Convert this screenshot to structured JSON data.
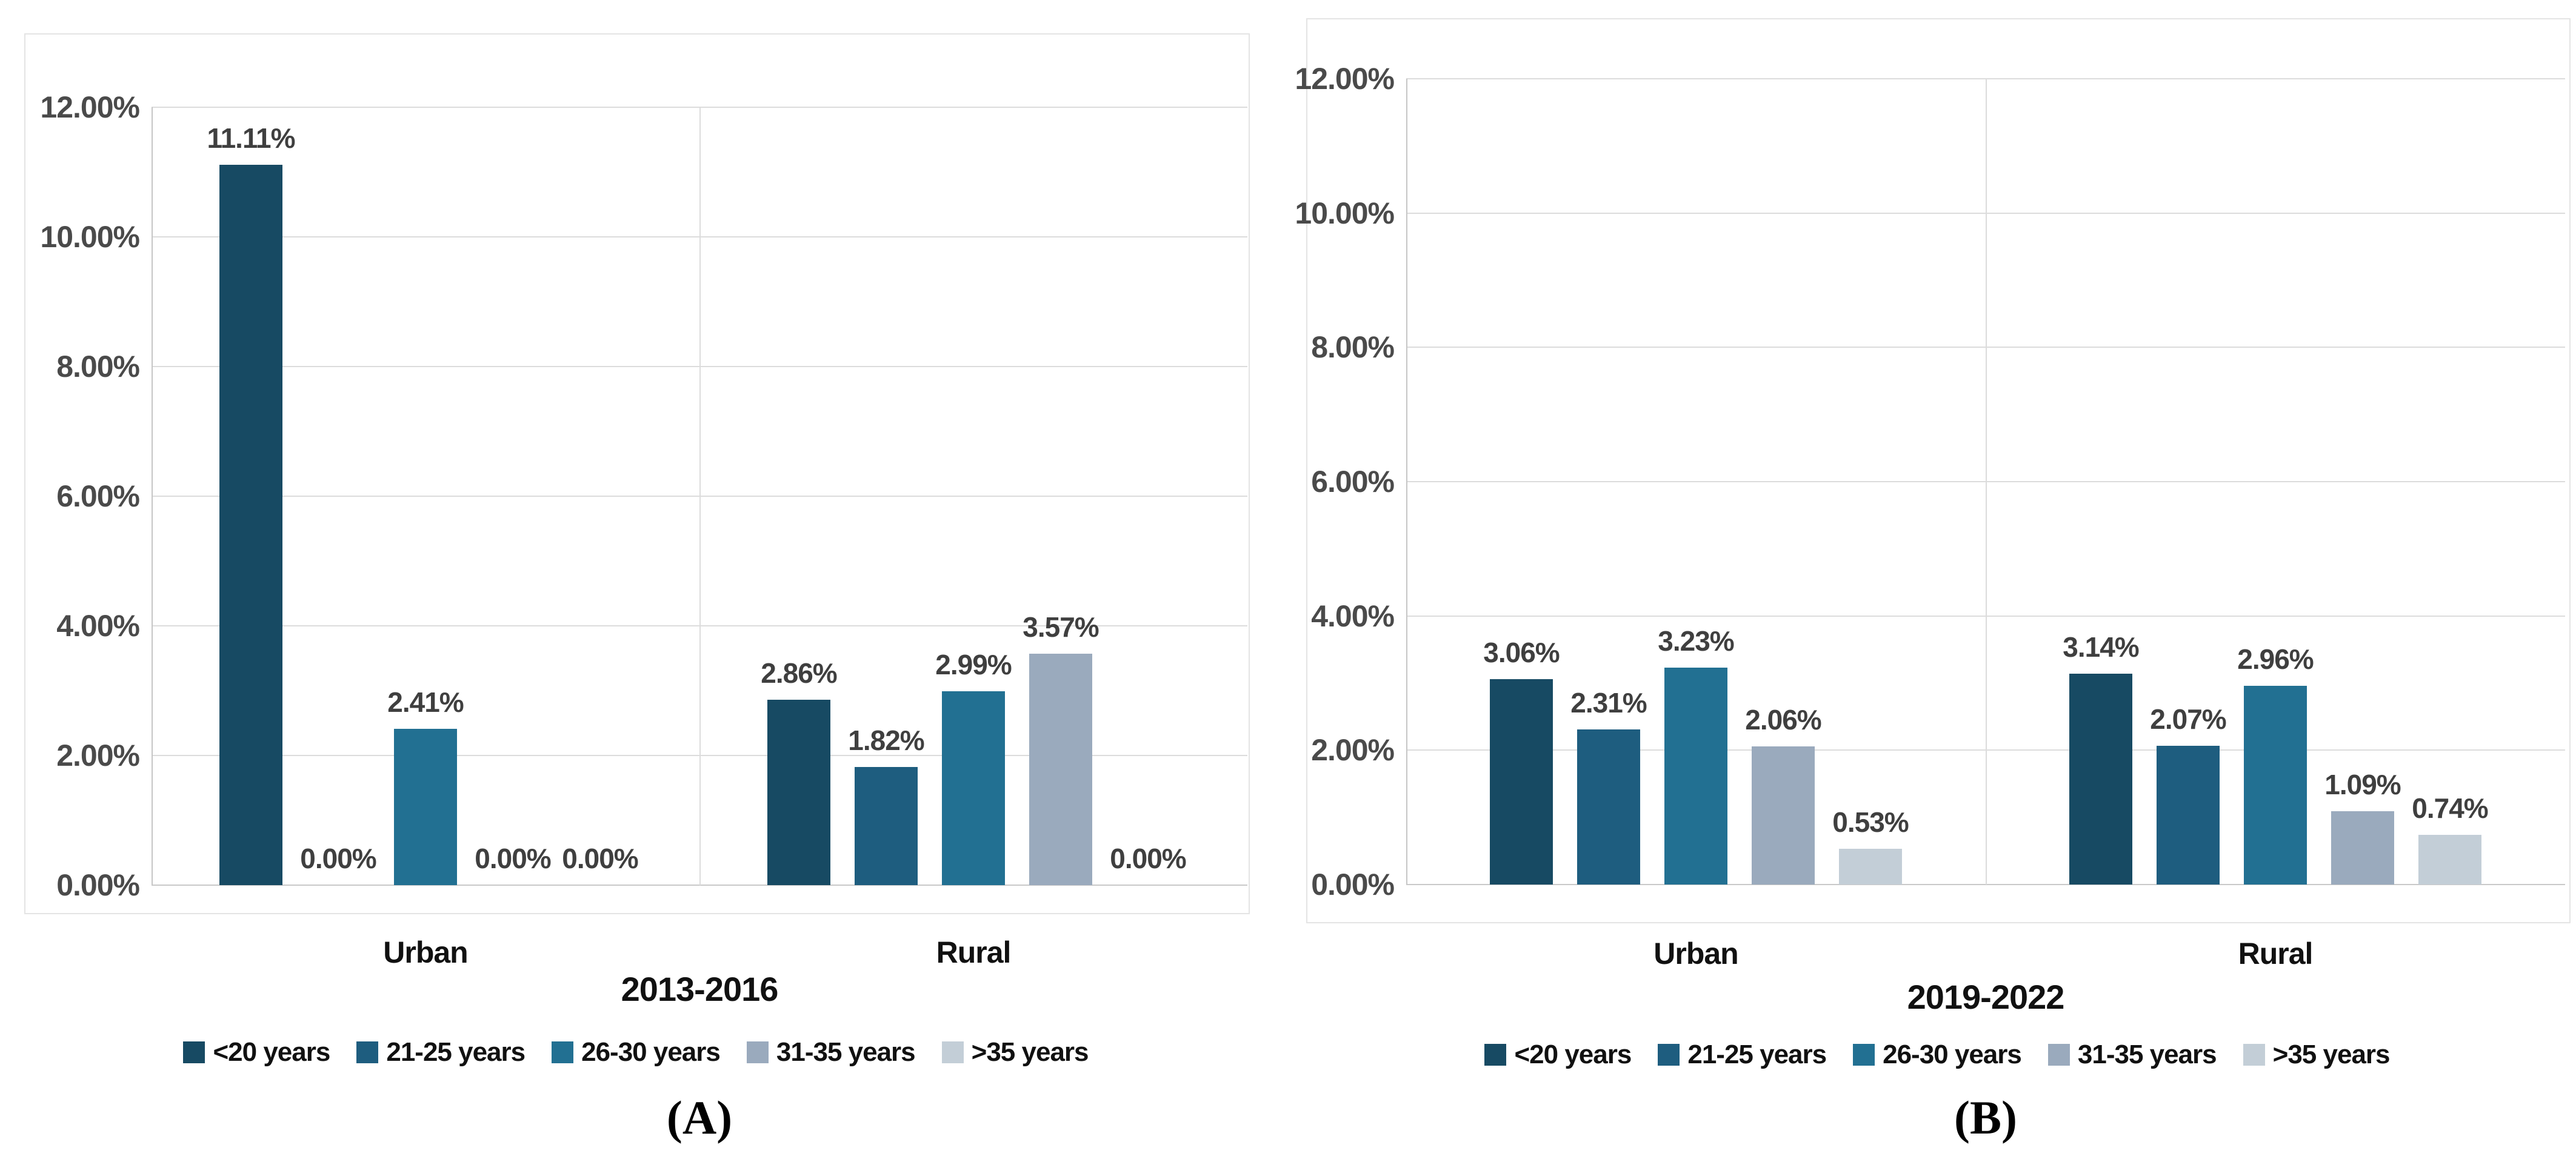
{
  "figure": {
    "background": "#ffffff",
    "grid_color": "#dcdcdc",
    "axis_line_color": "#c6c6c6",
    "panel_border_color": "#e4e4e4",
    "tick_text_color": "#4a4a4a",
    "label_text_color": "#3f3f3f"
  },
  "chart_data": [
    {
      "id": "A",
      "type": "bar",
      "title": "2013-2016",
      "caption": "(A)",
      "categories": [
        "Urban",
        "Rural"
      ],
      "series": [
        {
          "name": "<20 years",
          "color": "#174a63",
          "values": [
            11.11,
            2.86
          ]
        },
        {
          "name": "21-25 years",
          "color": "#1e5d7f",
          "values": [
            0.0,
            1.82
          ]
        },
        {
          "name": "26-30 years",
          "color": "#227092",
          "values": [
            2.41,
            2.99
          ]
        },
        {
          "name": "31-35 years",
          "color": "#9aaabd",
          "values": [
            0.0,
            3.57
          ]
        },
        {
          "name": ">35 years",
          "color": "#c3ced7",
          "values": [
            0.0,
            0.0
          ]
        }
      ],
      "value_labels": [
        [
          "11.11%",
          "0.00%",
          "2.41%",
          "0.00%",
          "0.00%"
        ],
        [
          "2.86%",
          "1.82%",
          "2.99%",
          "3.57%",
          "0.00%"
        ]
      ],
      "y_axis": {
        "min": 0,
        "max": 12,
        "tick_labels": [
          "12.00%",
          "10.00%",
          "8.00%",
          "6.00%",
          "4.00%",
          "2.00%",
          "0.00%"
        ],
        "gridlines": true
      },
      "legend": {
        "position": "bottom",
        "entries": [
          "<20 years",
          "21-25 years",
          "26-30 years",
          "31-35 years",
          ">35 years"
        ]
      }
    },
    {
      "id": "B",
      "type": "bar",
      "title": "2019-2022",
      "caption": "(B)",
      "categories": [
        "Urban",
        "Rural"
      ],
      "series": [
        {
          "name": "<20 years",
          "color": "#174a63",
          "values": [
            3.06,
            3.14
          ]
        },
        {
          "name": "21-25 years",
          "color": "#1e5d7f",
          "values": [
            2.31,
            2.07
          ]
        },
        {
          "name": "26-30 years",
          "color": "#227092",
          "values": [
            3.23,
            2.96
          ]
        },
        {
          "name": "31-35 years",
          "color": "#9aaabd",
          "values": [
            2.06,
            1.09
          ]
        },
        {
          "name": ">35 years",
          "color": "#c3ced7",
          "values": [
            0.53,
            0.74
          ]
        }
      ],
      "value_labels": [
        [
          "3.06%",
          "2.31%",
          "3.23%",
          "2.06%",
          "0.53%"
        ],
        [
          "3.14%",
          "2.07%",
          "2.96%",
          "1.09%",
          "0.74%"
        ]
      ],
      "y_axis": {
        "min": 0,
        "max": 12,
        "tick_labels": [
          "12.00%",
          "10.00%",
          "8.00%",
          "6.00%",
          "4.00%",
          "2.00%",
          "0.00%"
        ],
        "gridlines": true
      },
      "legend": {
        "position": "bottom",
        "entries": [
          "<20 years",
          "21-25 years",
          "26-30 years",
          "31-35 years",
          ">35 years"
        ]
      }
    }
  ]
}
